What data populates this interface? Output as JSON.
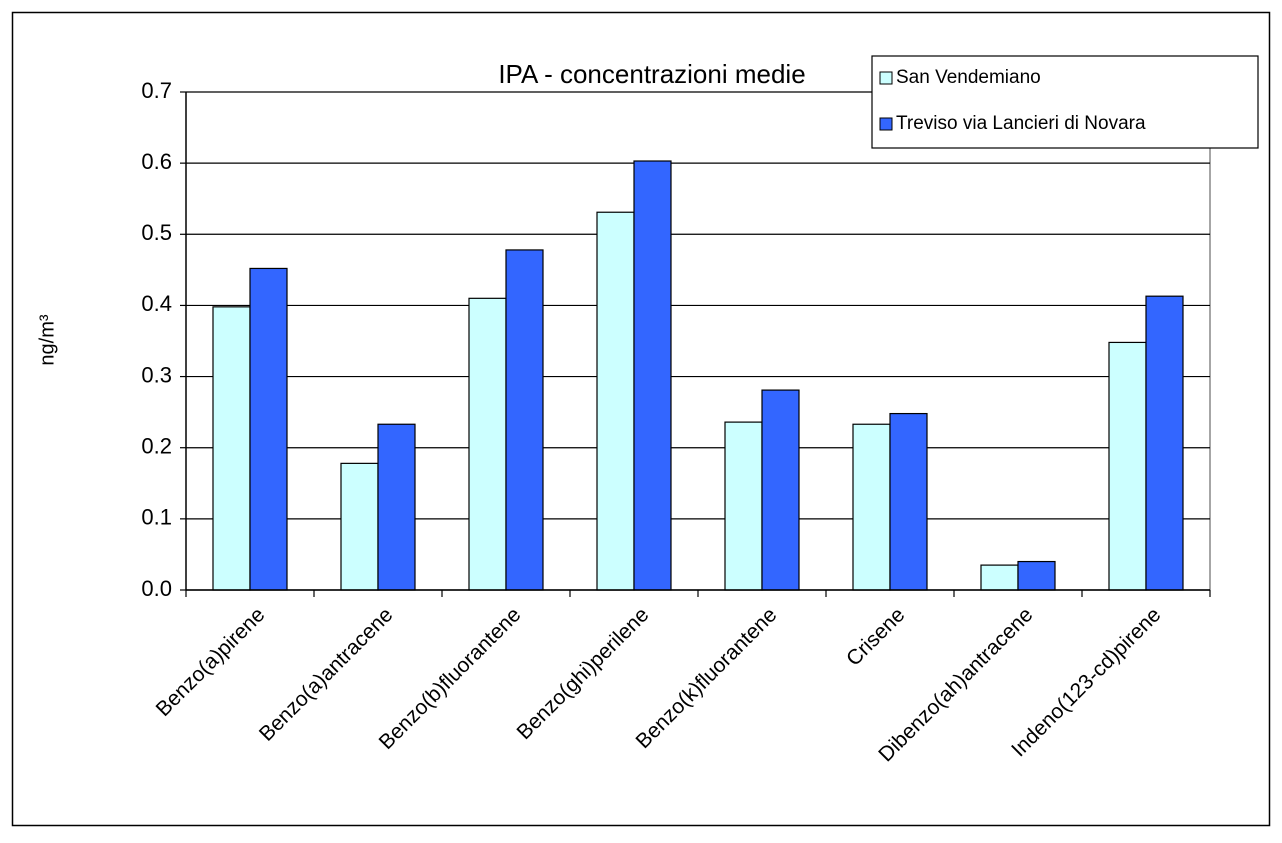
{
  "chart_data": {
    "type": "bar",
    "title": "IPA - concentrazioni medie",
    "y_label": "ng/m³",
    "categories": [
      "Benzo(a)pirene",
      "Benzo(a)antracene",
      "Benzo(b)fluorantene",
      "Benzo(ghi)perilene",
      "Benzo(k)fluorantene",
      "Crisene",
      "Dibenzo(ah)antracene",
      "Indeno(123-cd)pirene"
    ],
    "series": [
      {
        "name": "San Vendemiano",
        "color": "#ccffff",
        "values": [
          0.398,
          0.178,
          0.41,
          0.531,
          0.236,
          0.233,
          0.035,
          0.348
        ]
      },
      {
        "name": "Treviso via Lancieri di Novara",
        "color": "#3366ff",
        "values": [
          0.452,
          0.233,
          0.478,
          0.603,
          0.281,
          0.248,
          0.04,
          0.413
        ]
      }
    ],
    "ylim": [
      0,
      0.7
    ],
    "yticks": [
      {
        "value": 0,
        "label": "0.0"
      },
      0.1,
      0.2,
      0.3,
      0.4,
      0.5,
      0.6,
      0.7
    ],
    "grid": true,
    "legend": "top-right"
  }
}
